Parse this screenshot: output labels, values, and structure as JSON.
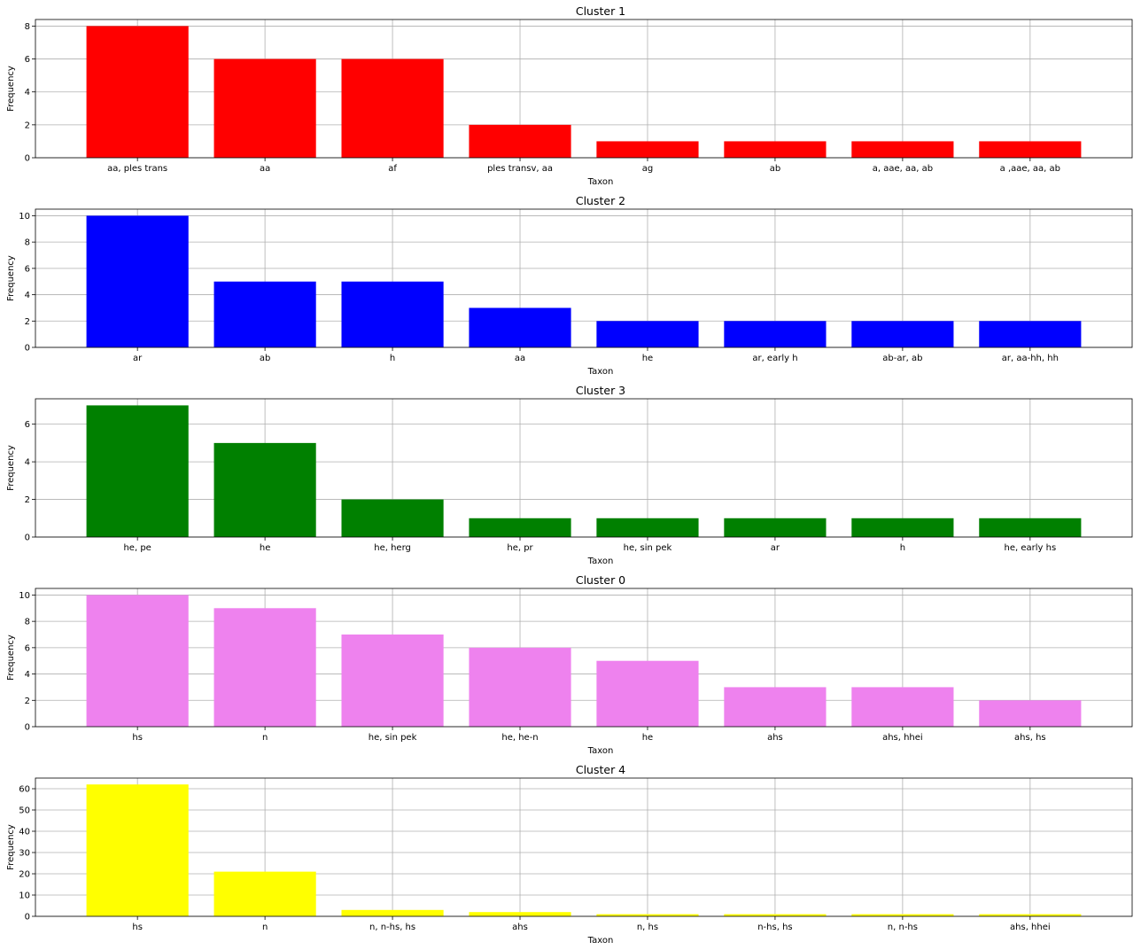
{
  "chart_data": [
    {
      "type": "bar",
      "title": "Cluster 1",
      "xlabel": "Taxon",
      "ylabel": "Frequency",
      "color": "#ff0000",
      "grid": true,
      "ylim": [
        0,
        8.4
      ],
      "yticks": [
        0,
        2,
        4,
        6,
        8
      ],
      "categories": [
        "aa, ples trans",
        "aa",
        "af",
        "ples transv, aa",
        "ag",
        "ab",
        "a, aae, aa, ab",
        "a ,aae, aa, ab"
      ],
      "values": [
        8,
        6,
        6,
        2,
        1,
        1,
        1,
        1
      ]
    },
    {
      "type": "bar",
      "title": "Cluster 2",
      "xlabel": "Taxon",
      "ylabel": "Frequency",
      "color": "#0000ff",
      "grid": true,
      "ylim": [
        0,
        10.5
      ],
      "yticks": [
        0,
        2,
        4,
        6,
        8,
        10
      ],
      "categories": [
        "ar",
        "ab",
        "h",
        "aa",
        "he",
        "ar, early h",
        "ab-ar, ab",
        "ar, aa-hh, hh"
      ],
      "values": [
        10,
        5,
        5,
        3,
        2,
        2,
        2,
        2
      ]
    },
    {
      "type": "bar",
      "title": "Cluster 3",
      "xlabel": "Taxon",
      "ylabel": "Frequency",
      "color": "#008000",
      "grid": true,
      "ylim": [
        0,
        7.35
      ],
      "yticks": [
        0,
        2,
        4,
        6
      ],
      "categories": [
        "he, pe",
        "he",
        "he, herg",
        "he, pr",
        "he, sin pek",
        "ar",
        "h",
        "he, early hs"
      ],
      "values": [
        7,
        5,
        2,
        1,
        1,
        1,
        1,
        1
      ]
    },
    {
      "type": "bar",
      "title": "Cluster 0",
      "xlabel": "Taxon",
      "ylabel": "Frequency",
      "color": "#ee82ee",
      "grid": true,
      "ylim": [
        0,
        10.5
      ],
      "yticks": [
        0,
        2,
        4,
        6,
        8,
        10
      ],
      "categories": [
        "hs",
        "n",
        "he, sin pek",
        "he, he-n",
        "he",
        "ahs",
        "ahs, hhei",
        "ahs, hs"
      ],
      "values": [
        10,
        9,
        7,
        6,
        5,
        3,
        3,
        2
      ]
    },
    {
      "type": "bar",
      "title": "Cluster 4",
      "xlabel": "Taxon",
      "ylabel": "Frequency",
      "color": "#ffff00",
      "grid": true,
      "ylim": [
        0,
        65
      ],
      "yticks": [
        0,
        10,
        20,
        30,
        40,
        50,
        60
      ],
      "categories": [
        "hs",
        "n",
        "n, n-hs, hs",
        "ahs",
        "n, hs",
        "n-hs, hs",
        "n, n-hs",
        "ahs, hhei"
      ],
      "values": [
        62,
        21,
        3,
        2,
        1,
        1,
        1,
        1
      ]
    }
  ]
}
